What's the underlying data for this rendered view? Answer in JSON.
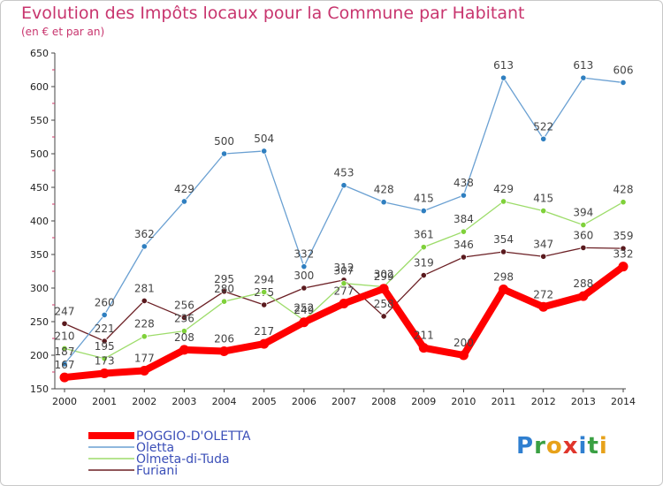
{
  "title": "Evolution des Impôts locaux pour la Commune par Habitant",
  "subtitle": "(en € et par an)",
  "logo": {
    "text": "Proxiti",
    "letters": [
      "P",
      "r",
      "o",
      "x",
      "i",
      "t",
      "i"
    ],
    "colors": [
      "#2f7fd0",
      "#3aa043",
      "#e7a21a",
      "#e0352b",
      "#2f7fd0",
      "#3aa043",
      "#e7a21a"
    ]
  },
  "chart_data": {
    "type": "line",
    "title": "Evolution des Impôts locaux pour la Commune par Habitant",
    "subtitle": "(en € et par an)",
    "x": [
      "2000",
      "2001",
      "2002",
      "2003",
      "2004",
      "2005",
      "2006",
      "2007",
      "2008",
      "2009",
      "2010",
      "2011",
      "2012",
      "2013",
      "2014"
    ],
    "ylim": [
      150,
      650
    ],
    "yticks": [
      150,
      200,
      250,
      300,
      350,
      400,
      450,
      500,
      550,
      600,
      650
    ],
    "grid": false,
    "legend_position": "bottom-left",
    "series": [
      {
        "name": "Furiani",
        "color": "#6b1f24",
        "markerColor": "#5a1a1e",
        "width": 1.3,
        "values": [
          247,
          221,
          281,
          256,
          295,
          275,
          300,
          312,
          258,
          319,
          346,
          354,
          347,
          360,
          359
        ]
      },
      {
        "name": "Olmeta-di-Tuda",
        "color": "#9ddc6a",
        "markerColor": "#7fd13a",
        "width": 1.3,
        "values": [
          210,
          195,
          228,
          236,
          280,
          294,
          252,
          307,
          302,
          361,
          384,
          429,
          415,
          394,
          428
        ]
      },
      {
        "name": "Oletta",
        "color": "#6aa0d2",
        "markerColor": "#2f7fc0",
        "width": 1.3,
        "values": [
          187,
          260,
          362,
          429,
          500,
          504,
          332,
          453,
          428,
          415,
          438,
          613,
          522,
          613,
          606
        ]
      },
      {
        "name": "POGGIO-D'OLETTA",
        "color": "#ff0000",
        "markerColor": "#ff0000",
        "width": 8,
        "values": [
          167,
          173,
          177,
          208,
          206,
          217,
          249,
          277,
          299,
          211,
          200,
          298,
          272,
          288,
          332
        ]
      }
    ],
    "legend_order": [
      "POGGIO-D'OLETTA",
      "Oletta",
      "Olmeta-di-Tuda",
      "Furiani"
    ]
  }
}
